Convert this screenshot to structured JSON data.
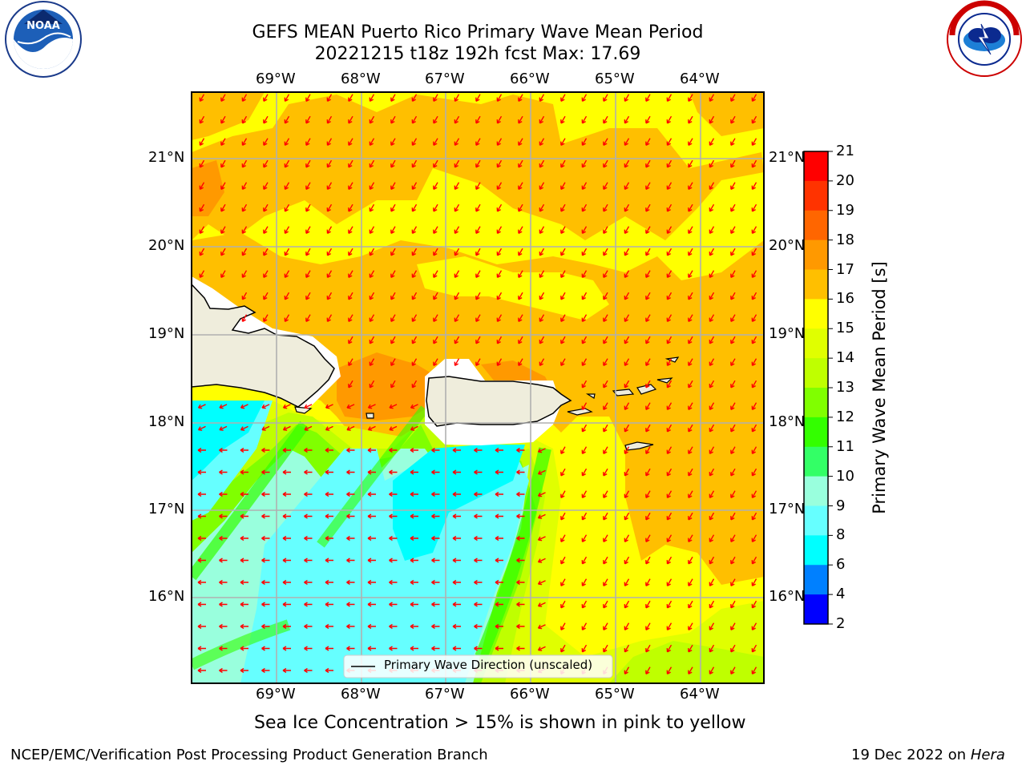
{
  "header": {
    "title_line1": "GEFS MEAN Puerto Rico Primary Wave Mean Period",
    "title_line2": "20221215 t18z 192h fcst   Max: 17.69"
  },
  "logos": {
    "left": {
      "text": "NOAA",
      "ring_text": "NATIONAL OCEANIC AND ATMOSPHERIC ADMINISTRATION · U.S. DEPARTMENT OF COMMERCE"
    },
    "right": {
      "ring_text": "NATIONAL WEATHER SERVICE"
    }
  },
  "map": {
    "lon_labels": [
      "69°W",
      "68°W",
      "67°W",
      "66°W",
      "65°W",
      "64°W"
    ],
    "lat_labels": [
      "21°N",
      "20°N",
      "19°N",
      "18°N",
      "17°N",
      "16°N"
    ],
    "legend_label": "Primary Wave Direction (unscaled)"
  },
  "colorbar": {
    "label": "Primary Wave Mean Period [s]",
    "ticks": [
      "21",
      "20",
      "19",
      "18",
      "17",
      "16",
      "15",
      "14",
      "13",
      "12",
      "11",
      "10",
      "9",
      "8",
      "6",
      "4",
      "2"
    ],
    "colors": [
      "#ff0000",
      "#ff3300",
      "#ff6600",
      "#ff9900",
      "#ffbf00",
      "#ffff00",
      "#e0ff00",
      "#bfff00",
      "#80ff00",
      "#33ff00",
      "#33ff66",
      "#99ffdd",
      "#66ffff",
      "#00ffff",
      "#0080ff",
      "#0000ff"
    ]
  },
  "note": "Sea Ice Concentration > 15% is shown in pink to yellow",
  "footer": {
    "left": "NCEP/EMC/Verification Post Processing Product Generation Branch",
    "right_prefix": "19 Dec 2022 on ",
    "right_host": "Hera"
  },
  "colors": {
    "orange": "#ffbf00",
    "dark_orange": "#ff9900",
    "yellow": "#ffff00",
    "yellow_green": "#e0ff00",
    "light_green": "#bfff00",
    "green": "#80ff00",
    "cyan": "#00ffff",
    "light_cyan": "#66ffff",
    "aqua": "#99ffdd",
    "land": "#efeddc",
    "arrow": "#ff0000"
  }
}
